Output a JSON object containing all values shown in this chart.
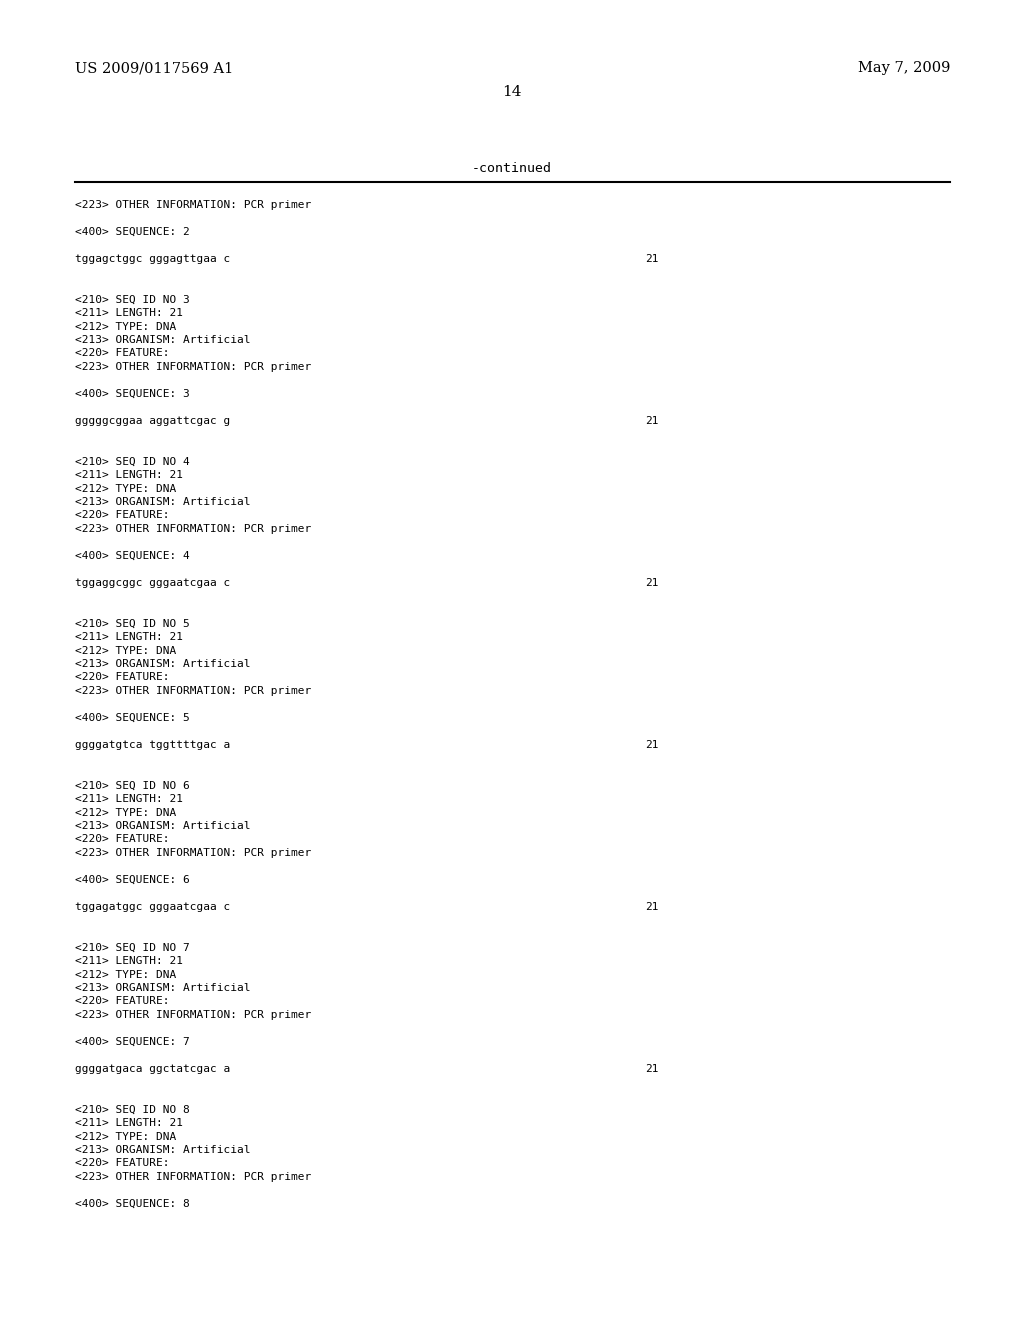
{
  "header_left": "US 2009/0117569 A1",
  "header_right": "May 7, 2009",
  "page_number": "14",
  "continued_label": "-continued",
  "background_color": "#ffffff",
  "text_color": "#000000",
  "line_color": "#000000",
  "header_fontsize": 10.5,
  "mono_fontsize": 8.0,
  "page_num_fontsize": 11,
  "continued_fontsize": 9.5,
  "line_items": [
    [
      "<223> OTHER INFORMATION: PCR primer",
      null
    ],
    [
      "",
      null
    ],
    [
      "<400> SEQUENCE: 2",
      null
    ],
    [
      "",
      null
    ],
    [
      "tggagctggc gggagttgaa c",
      "21"
    ],
    [
      "",
      null
    ],
    [
      "",
      null
    ],
    [
      "<210> SEQ ID NO 3",
      null
    ],
    [
      "<211> LENGTH: 21",
      null
    ],
    [
      "<212> TYPE: DNA",
      null
    ],
    [
      "<213> ORGANISM: Artificial",
      null
    ],
    [
      "<220> FEATURE:",
      null
    ],
    [
      "<223> OTHER INFORMATION: PCR primer",
      null
    ],
    [
      "",
      null
    ],
    [
      "<400> SEQUENCE: 3",
      null
    ],
    [
      "",
      null
    ],
    [
      "gggggcggaa aggattcgac g",
      "21"
    ],
    [
      "",
      null
    ],
    [
      "",
      null
    ],
    [
      "<210> SEQ ID NO 4",
      null
    ],
    [
      "<211> LENGTH: 21",
      null
    ],
    [
      "<212> TYPE: DNA",
      null
    ],
    [
      "<213> ORGANISM: Artificial",
      null
    ],
    [
      "<220> FEATURE:",
      null
    ],
    [
      "<223> OTHER INFORMATION: PCR primer",
      null
    ],
    [
      "",
      null
    ],
    [
      "<400> SEQUENCE: 4",
      null
    ],
    [
      "",
      null
    ],
    [
      "tggaggcggc gggaatcgaa c",
      "21"
    ],
    [
      "",
      null
    ],
    [
      "",
      null
    ],
    [
      "<210> SEQ ID NO 5",
      null
    ],
    [
      "<211> LENGTH: 21",
      null
    ],
    [
      "<212> TYPE: DNA",
      null
    ],
    [
      "<213> ORGANISM: Artificial",
      null
    ],
    [
      "<220> FEATURE:",
      null
    ],
    [
      "<223> OTHER INFORMATION: PCR primer",
      null
    ],
    [
      "",
      null
    ],
    [
      "<400> SEQUENCE: 5",
      null
    ],
    [
      "",
      null
    ],
    [
      "ggggatgtca tggttttgac a",
      "21"
    ],
    [
      "",
      null
    ],
    [
      "",
      null
    ],
    [
      "<210> SEQ ID NO 6",
      null
    ],
    [
      "<211> LENGTH: 21",
      null
    ],
    [
      "<212> TYPE: DNA",
      null
    ],
    [
      "<213> ORGANISM: Artificial",
      null
    ],
    [
      "<220> FEATURE:",
      null
    ],
    [
      "<223> OTHER INFORMATION: PCR primer",
      null
    ],
    [
      "",
      null
    ],
    [
      "<400> SEQUENCE: 6",
      null
    ],
    [
      "",
      null
    ],
    [
      "tggagatggc gggaatcgaa c",
      "21"
    ],
    [
      "",
      null
    ],
    [
      "",
      null
    ],
    [
      "<210> SEQ ID NO 7",
      null
    ],
    [
      "<211> LENGTH: 21",
      null
    ],
    [
      "<212> TYPE: DNA",
      null
    ],
    [
      "<213> ORGANISM: Artificial",
      null
    ],
    [
      "<220> FEATURE:",
      null
    ],
    [
      "<223> OTHER INFORMATION: PCR primer",
      null
    ],
    [
      "",
      null
    ],
    [
      "<400> SEQUENCE: 7",
      null
    ],
    [
      "",
      null
    ],
    [
      "ggggatgaca ggctatcgac a",
      "21"
    ],
    [
      "",
      null
    ],
    [
      "",
      null
    ],
    [
      "<210> SEQ ID NO 8",
      null
    ],
    [
      "<211> LENGTH: 21",
      null
    ],
    [
      "<212> TYPE: DNA",
      null
    ],
    [
      "<213> ORGANISM: Artificial",
      null
    ],
    [
      "<220> FEATURE:",
      null
    ],
    [
      "<223> OTHER INFORMATION: PCR primer",
      null
    ],
    [
      "",
      null
    ],
    [
      "<400> SEQUENCE: 8",
      null
    ]
  ]
}
